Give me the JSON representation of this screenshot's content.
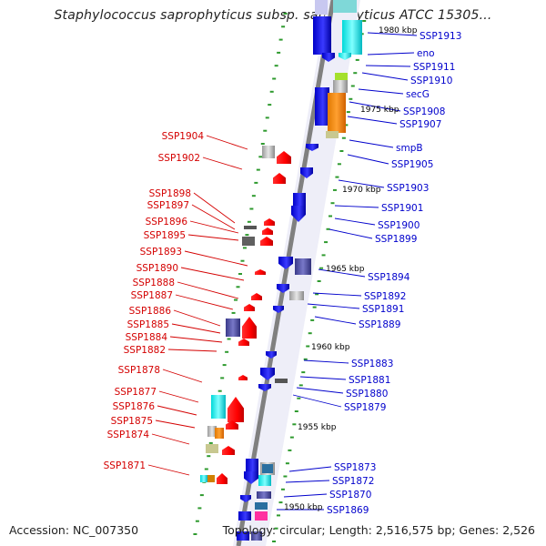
{
  "title": "Staphylococcus saprophyticus subsp. saprophyticus ATCC 15305...",
  "footer": {
    "accession": "Accession: NC_007350",
    "summary": "Topology: circular; Length: 2,516,575 bp; Genes: 2,526"
  },
  "colors": {
    "left_label": "#d40000",
    "right_label": "#0000cc",
    "backbone": "#888888"
  },
  "kbp_markers": [
    "1980 kbp",
    "1975 kbp",
    "1970 kbp",
    "1965 kbp",
    "1960 kbp",
    "1955 kbp",
    "1950 kbp"
  ],
  "left_genes": [
    "SSP1904",
    "SSP1902",
    "SSP1898",
    "SSP1897",
    "SSP1896",
    "SSP1895",
    "SSP1893",
    "SSP1890",
    "SSP1888",
    "SSP1887",
    "SSP1886",
    "SSP1885",
    "SSP1884",
    "SSP1882",
    "SSP1878",
    "SSP1877",
    "SSP1876",
    "SSP1875",
    "SSP1874",
    "SSP1871"
  ],
  "right_genes": [
    "SSP1913",
    "eno",
    "SSP1911",
    "SSP1910",
    "secG",
    "SSP1908",
    "SSP1907",
    "smpB",
    "SSP1905",
    "SSP1903",
    "SSP1901",
    "SSP1900",
    "SSP1899",
    "SSP1894",
    "SSP1892",
    "SSP1891",
    "SSP1889",
    "SSP1883",
    "SSP1881",
    "SSP1880",
    "SSP1879",
    "SSP1873",
    "SSP1872",
    "SSP1870",
    "SSP1869"
  ]
}
